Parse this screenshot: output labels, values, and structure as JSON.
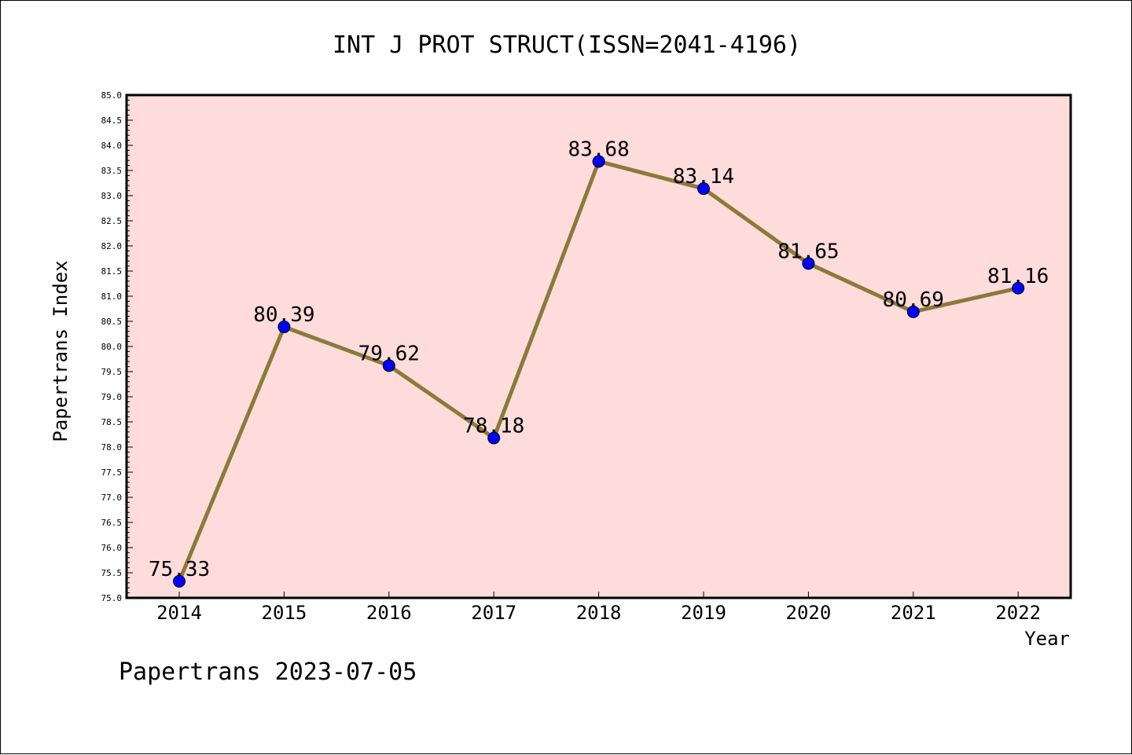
{
  "chart_data": {
    "type": "line",
    "title": "INT J PROT STRUCT(ISSN=2041-4196)",
    "xlabel": "Year",
    "ylabel": "Papertrans Index",
    "categories": [
      "2014",
      "2015",
      "2016",
      "2017",
      "2018",
      "2019",
      "2020",
      "2021",
      "2022"
    ],
    "values": [
      75.33,
      80.39,
      79.62,
      78.18,
      83.68,
      83.14,
      81.65,
      80.69,
      81.16
    ],
    "data_labels": [
      "75.33",
      "80.39",
      "79.62",
      "78.18",
      "83.68",
      "83.14",
      "81.65",
      "80.69",
      "81.16"
    ],
    "ylim": [
      75.0,
      85.0
    ],
    "yticks": [
      "75.0",
      "75.5",
      "76.0",
      "76.5",
      "77.0",
      "77.5",
      "78.0",
      "78.5",
      "79.0",
      "79.5",
      "80.0",
      "80.5",
      "81.0",
      "81.5",
      "82.0",
      "82.5",
      "83.0",
      "83.5",
      "84.0",
      "84.5",
      "85.0"
    ],
    "grid": false,
    "colors": {
      "plot_background": "#fddcdb",
      "line": "#8b7a3a",
      "marker": "#0000ff"
    }
  },
  "footer": "Papertrans 2023-07-05"
}
